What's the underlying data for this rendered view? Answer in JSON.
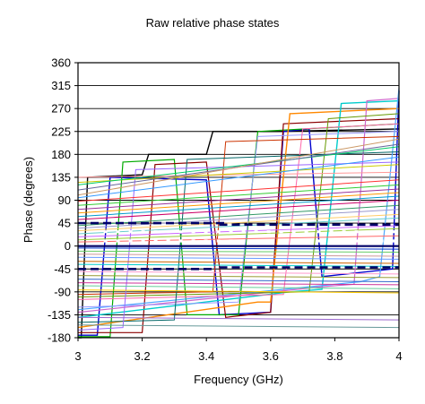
{
  "chart_data": {
    "type": "line",
    "title": "Raw relative phase states",
    "xlabel": "Frequency (GHz)",
    "ylabel": "Phase (degrees)",
    "xlim": [
      3,
      4
    ],
    "ylim": [
      -180,
      360
    ],
    "xticks": [
      "3",
      "3.2",
      "3.4",
      "3.6",
      "3.8",
      "4"
    ],
    "yticks": [
      "360",
      "315",
      "270",
      "225",
      "180",
      "135",
      "90",
      "45",
      "0",
      "-45",
      "-90",
      "-135",
      "-180"
    ],
    "grid": "horizontal",
    "legend": "none",
    "series": [
      {
        "color": "#000000",
        "width": 1.4,
        "points": [
          [
            3.0,
            -180
          ],
          [
            3.01,
            -180
          ],
          [
            3.03,
            135
          ],
          [
            3.2,
            140
          ],
          [
            3.22,
            180
          ],
          [
            3.4,
            180
          ],
          [
            3.42,
            225
          ],
          [
            3.6,
            225
          ],
          [
            3.62,
            225
          ],
          [
            4.0,
            230
          ]
        ]
      },
      {
        "color": "#0000cc",
        "width": 1.4,
        "points": [
          [
            3.0,
            -175
          ],
          [
            3.06,
            -175
          ],
          [
            3.1,
            135
          ],
          [
            3.4,
            130
          ],
          [
            3.44,
            -135
          ],
          [
            3.6,
            -130
          ],
          [
            3.64,
            225
          ],
          [
            3.72,
            230
          ],
          [
            3.76,
            -60
          ],
          [
            3.98,
            -45
          ],
          [
            4.0,
            305
          ]
        ]
      },
      {
        "color": "#00aa00",
        "width": 1.2,
        "points": [
          [
            3.0,
            -178
          ],
          [
            3.1,
            -178
          ],
          [
            3.14,
            165
          ],
          [
            3.3,
            170
          ],
          [
            3.34,
            -135
          ],
          [
            3.5,
            -135
          ],
          [
            3.56,
            225
          ],
          [
            4.0,
            240
          ]
        ]
      },
      {
        "color": "#8b0000",
        "width": 1.2,
        "points": [
          [
            3.0,
            -170
          ],
          [
            3.2,
            -170
          ],
          [
            3.24,
            160
          ],
          [
            3.4,
            165
          ],
          [
            3.46,
            -140
          ],
          [
            3.6,
            -130
          ],
          [
            3.64,
            240
          ],
          [
            4.0,
            250
          ]
        ]
      },
      {
        "color": "#ff8800",
        "width": 1.4,
        "points": [
          [
            3.0,
            -160
          ],
          [
            3.56,
            -110
          ],
          [
            3.6,
            -110
          ],
          [
            3.66,
            260
          ],
          [
            4.0,
            270
          ]
        ]
      },
      {
        "color": "#00cccc",
        "width": 1.4,
        "points": [
          [
            3.0,
            -140
          ],
          [
            3.66,
            -90
          ],
          [
            3.76,
            -85
          ],
          [
            3.82,
            280
          ],
          [
            4.0,
            285
          ]
        ]
      },
      {
        "color": "#cc66cc",
        "width": 1.2,
        "points": [
          [
            3.0,
            -130
          ],
          [
            3.76,
            -80
          ],
          [
            3.86,
            -75
          ],
          [
            3.9,
            285
          ],
          [
            4.0,
            290
          ]
        ]
      },
      {
        "color": "#4da6ff",
        "width": 1.2,
        "points": [
          [
            3.0,
            -125
          ],
          [
            3.88,
            -70
          ],
          [
            3.94,
            -60
          ],
          [
            4.0,
            310
          ]
        ]
      },
      {
        "color": "#9999ff",
        "width": 1.0,
        "points": [
          [
            3.0,
            -120
          ],
          [
            3.5,
            -110
          ],
          [
            3.56,
            215
          ],
          [
            4.0,
            225
          ]
        ]
      },
      {
        "color": "#ff66aa",
        "width": 1.0,
        "points": [
          [
            3.0,
            -105
          ],
          [
            3.64,
            -95
          ],
          [
            3.7,
            230
          ],
          [
            4.0,
            240
          ]
        ]
      },
      {
        "color": "#669900",
        "width": 1.0,
        "points": [
          [
            3.0,
            -100
          ],
          [
            3.72,
            -90
          ],
          [
            3.78,
            250
          ],
          [
            4.0,
            260
          ]
        ]
      },
      {
        "color": "#cc3300",
        "width": 1.0,
        "points": [
          [
            3.0,
            -95
          ],
          [
            3.42,
            -90
          ],
          [
            3.46,
            205
          ],
          [
            4.0,
            215
          ]
        ]
      },
      {
        "color": "#006666",
        "width": 1.0,
        "points": [
          [
            3.0,
            -150
          ],
          [
            3.3,
            -145
          ],
          [
            3.34,
            170
          ],
          [
            4.0,
            185
          ]
        ]
      },
      {
        "color": "#9966ff",
        "width": 1.0,
        "points": [
          [
            3.0,
            -165
          ],
          [
            3.14,
            -160
          ],
          [
            3.18,
            150
          ],
          [
            4.0,
            165
          ]
        ]
      },
      {
        "color": "#ff9999",
        "width": 1.0,
        "points": [
          [
            3.0,
            135
          ],
          [
            4.0,
            145
          ]
        ]
      },
      {
        "color": "#cccc00",
        "width": 1.0,
        "points": [
          [
            3.0,
            125
          ],
          [
            4.0,
            160
          ]
        ]
      },
      {
        "color": "#00cc66",
        "width": 1.0,
        "points": [
          [
            3.0,
            120
          ],
          [
            4.0,
            195
          ]
        ]
      },
      {
        "color": "#666699",
        "width": 1.0,
        "points": [
          [
            3.0,
            110
          ],
          [
            4.0,
            200
          ]
        ]
      },
      {
        "color": "#cc9966",
        "width": 1.0,
        "points": [
          [
            3.0,
            100
          ],
          [
            4.0,
            210
          ]
        ]
      },
      {
        "color": "#3399ff",
        "width": 1.0,
        "points": [
          [
            3.0,
            95
          ],
          [
            4.0,
            175
          ]
        ]
      },
      {
        "color": "#ff3333",
        "width": 1.0,
        "points": [
          [
            3.0,
            88
          ],
          [
            4.0,
            130
          ]
        ]
      },
      {
        "color": "#33cc33",
        "width": 1.0,
        "points": [
          [
            3.0,
            80
          ],
          [
            4.0,
            120
          ]
        ]
      },
      {
        "color": "#993399",
        "width": 1.0,
        "points": [
          [
            3.0,
            72
          ],
          [
            4.0,
            112
          ]
        ]
      },
      {
        "color": "#ff9900",
        "width": 1.0,
        "points": [
          [
            3.0,
            65
          ],
          [
            4.0,
            105
          ]
        ]
      },
      {
        "color": "#0099cc",
        "width": 1.0,
        "points": [
          [
            3.0,
            58
          ],
          [
            4.0,
            98
          ]
        ]
      },
      {
        "color": "#cc0066",
        "width": 1.0,
        "points": [
          [
            3.0,
            52
          ],
          [
            4.0,
            90
          ]
        ]
      },
      {
        "color": "#339966",
        "width": 1.0,
        "points": [
          [
            3.0,
            40
          ],
          [
            4.0,
            80
          ]
        ]
      },
      {
        "color": "#9999cc",
        "width": 1.0,
        "points": [
          [
            3.0,
            35
          ],
          [
            4.0,
            72
          ]
        ]
      },
      {
        "color": "#ffcc66",
        "width": 1.0,
        "points": [
          [
            3.0,
            30
          ],
          [
            4.0,
            62
          ]
        ]
      },
      {
        "color": "#66cccc",
        "width": 1.0,
        "points": [
          [
            3.0,
            24
          ],
          [
            4.0,
            55
          ]
        ]
      },
      {
        "color": "#cc66ff",
        "width": 1.0,
        "points": [
          [
            3.0,
            18
          ],
          [
            4.0,
            40
          ]
        ]
      },
      {
        "color": "#99cc33",
        "width": 1.0,
        "points": [
          [
            3.0,
            12
          ],
          [
            4.0,
            34
          ]
        ]
      },
      {
        "color": "#ff6666",
        "width": 1.0,
        "points": [
          [
            3.0,
            8
          ],
          [
            4.0,
            20
          ]
        ]
      },
      {
        "color": "#000066",
        "width": 2.2,
        "points": [
          [
            3.0,
            0
          ],
          [
            4.0,
            0
          ]
        ]
      },
      {
        "color": "#0033cc",
        "width": 1.0,
        "points": [
          [
            3.0,
            -4
          ],
          [
            4.0,
            -6
          ]
        ]
      },
      {
        "color": "#66cc66",
        "width": 1.0,
        "points": [
          [
            3.0,
            -10
          ],
          [
            4.0,
            -12
          ]
        ]
      },
      {
        "color": "#cc9999",
        "width": 1.0,
        "points": [
          [
            3.0,
            -16
          ],
          [
            4.0,
            -20
          ]
        ]
      },
      {
        "color": "#6699ff",
        "width": 1.0,
        "points": [
          [
            3.0,
            -22
          ],
          [
            4.0,
            -26
          ]
        ]
      },
      {
        "color": "#cc6600",
        "width": 1.0,
        "points": [
          [
            3.0,
            -30
          ],
          [
            4.0,
            -34
          ]
        ]
      },
      {
        "color": "#00cccc",
        "width": 1.0,
        "points": [
          [
            3.0,
            -36
          ],
          [
            4.0,
            -40
          ]
        ]
      },
      {
        "color": "#ff99cc",
        "width": 1.0,
        "points": [
          [
            3.0,
            -50
          ],
          [
            4.0,
            -55
          ]
        ]
      },
      {
        "color": "#999933",
        "width": 1.0,
        "points": [
          [
            3.0,
            -58
          ],
          [
            4.0,
            -62
          ]
        ]
      },
      {
        "color": "#3366cc",
        "width": 1.0,
        "points": [
          [
            3.0,
            -65
          ],
          [
            4.0,
            -70
          ]
        ]
      },
      {
        "color": "#cc3399",
        "width": 1.0,
        "points": [
          [
            3.0,
            -72
          ],
          [
            4.0,
            -76
          ]
        ]
      },
      {
        "color": "#66cc99",
        "width": 1.0,
        "points": [
          [
            3.0,
            -78
          ],
          [
            4.0,
            -84
          ]
        ]
      },
      {
        "color": "#ffcc00",
        "width": 1.0,
        "points": [
          [
            3.0,
            -86
          ],
          [
            4.0,
            -92
          ]
        ]
      },
      {
        "color": "#9966cc",
        "width": 1.0,
        "points": [
          [
            3.0,
            -140
          ],
          [
            4.0,
            -145
          ]
        ]
      },
      {
        "color": "#669999",
        "width": 1.0,
        "points": [
          [
            3.0,
            -155
          ],
          [
            4.0,
            -160
          ]
        ]
      }
    ],
    "dashed_series": [
      {
        "color": "#000066",
        "width": 2.6,
        "dash": "9 5",
        "points": [
          [
            3.0,
            45
          ],
          [
            3.46,
            45
          ]
        ]
      },
      {
        "color": "#000066",
        "width": 2.6,
        "dash": "9 5",
        "points": [
          [
            3.0,
            -45
          ],
          [
            3.42,
            -45
          ]
        ]
      },
      {
        "color": "#000066",
        "width": 2.6,
        "dash": "9 5",
        "points": [
          [
            3.44,
            42
          ],
          [
            4.0,
            42
          ]
        ]
      },
      {
        "color": "#000066",
        "width": 2.6,
        "dash": "9 5",
        "points": [
          [
            3.44,
            -42
          ],
          [
            4.0,
            -42
          ]
        ]
      },
      {
        "color": "#ffffff",
        "width": 3.2,
        "dash": "4 10",
        "points": [
          [
            3.08,
            10
          ],
          [
            4.0,
            10
          ]
        ]
      },
      {
        "color": "#ffffff",
        "width": 3.2,
        "dash": "4 10",
        "points": [
          [
            3.08,
            28
          ],
          [
            4.0,
            28
          ]
        ]
      }
    ]
  }
}
